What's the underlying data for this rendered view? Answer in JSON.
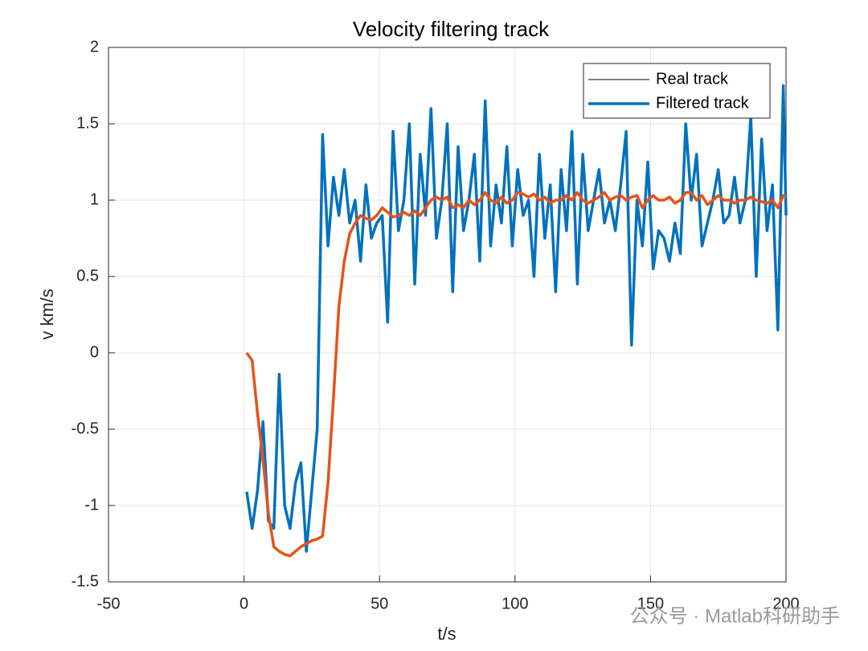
{
  "chart_data": {
    "type": "line",
    "title": "Velocity filtering track",
    "xlabel": "t/s",
    "ylabel": "v km/s",
    "xlim": [
      -50,
      200
    ],
    "xticks": [
      -50,
      0,
      50,
      100,
      150,
      200
    ],
    "ylim": [
      -1.5,
      2
    ],
    "yticks": [
      -1.5,
      -1,
      -0.5,
      0,
      0.5,
      1,
      1.5,
      2
    ],
    "grid": true,
    "legend_position": "upper right",
    "legend": [
      {
        "name": "Real track",
        "color": "#000000"
      },
      {
        "name": "Filtered track",
        "color": "#0072bd"
      }
    ],
    "x": [
      1,
      3,
      5,
      7,
      9,
      11,
      13,
      15,
      17,
      19,
      21,
      23,
      25,
      27,
      29,
      31,
      33,
      35,
      37,
      39,
      41,
      43,
      45,
      47,
      49,
      51,
      53,
      55,
      57,
      59,
      61,
      63,
      65,
      67,
      69,
      71,
      73,
      75,
      77,
      79,
      81,
      83,
      85,
      87,
      89,
      91,
      93,
      95,
      97,
      99,
      101,
      103,
      105,
      107,
      109,
      111,
      113,
      115,
      117,
      119,
      121,
      123,
      125,
      127,
      129,
      131,
      133,
      135,
      137,
      139,
      141,
      143,
      145,
      147,
      149,
      151,
      153,
      155,
      157,
      159,
      161,
      163,
      165,
      167,
      169,
      171,
      173,
      175,
      177,
      179,
      181,
      183,
      185,
      187,
      189,
      191,
      193,
      195,
      197,
      199,
      200
    ],
    "series": [
      {
        "color": "#0072bd",
        "values": [
          -0.91,
          -1.15,
          -0.9,
          -0.45,
          -1.1,
          -1.15,
          -0.14,
          -1.0,
          -1.15,
          -0.85,
          -0.72,
          -1.3,
          -0.9,
          -0.5,
          1.43,
          0.7,
          1.15,
          0.9,
          1.2,
          0.85,
          1.0,
          0.6,
          1.1,
          0.75,
          0.85,
          0.9,
          0.2,
          1.45,
          0.8,
          1.0,
          1.5,
          0.45,
          1.3,
          0.9,
          1.6,
          0.75,
          1.0,
          1.5,
          0.4,
          1.35,
          0.8,
          1.0,
          1.3,
          0.6,
          1.65,
          0.7,
          1.1,
          0.85,
          1.35,
          0.7,
          1.2,
          0.9,
          1.0,
          0.5,
          1.3,
          0.75,
          1.1,
          0.4,
          1.2,
          0.8,
          1.45,
          0.45,
          1.3,
          0.8,
          1.0,
          1.2,
          0.85,
          1.0,
          0.8,
          1.1,
          1.45,
          0.05,
          1.0,
          0.7,
          1.25,
          0.55,
          0.8,
          0.75,
          0.6,
          0.85,
          0.65,
          1.5,
          1.0,
          1.3,
          0.7,
          0.85,
          1.0,
          1.2,
          0.85,
          0.9,
          1.15,
          0.85,
          1.0,
          1.55,
          0.5,
          1.4,
          0.8,
          1.1,
          0.15,
          1.75,
          0.9
        ]
      },
      {
        "color": "#e65319",
        "values": [
          0,
          -0.05,
          -0.4,
          -0.7,
          -1.05,
          -1.27,
          -1.3,
          -1.32,
          -1.33,
          -1.3,
          -1.27,
          -1.25,
          -1.23,
          -1.22,
          -1.2,
          -0.85,
          -0.3,
          0.3,
          0.6,
          0.78,
          0.85,
          0.9,
          0.88,
          0.87,
          0.9,
          0.95,
          0.92,
          0.89,
          0.9,
          0.92,
          0.9,
          0.93,
          0.9,
          0.95,
          1.0,
          1.02,
          1.0,
          1.02,
          0.95,
          0.97,
          0.95,
          1.0,
          0.97,
          1.0,
          1.05,
          1.0,
          0.98,
          1.02,
          0.98,
          1.0,
          1.05,
          1.04,
          1.02,
          1.04,
          1.0,
          1.02,
          0.98,
          1.0,
          1.0,
          1.03,
          1.0,
          1.05,
          1.0,
          0.98,
          1.0,
          1.02,
          1.05,
          1.0,
          1.02,
          1.03,
          1.0,
          1.02,
          1.03,
          0.95,
          1.0,
          1.03,
          1.0,
          1.0,
          1.02,
          0.98,
          1.0,
          1.05,
          1.05,
          1.0,
          1.03,
          0.97,
          1.0,
          1.03,
          1.0,
          1.0,
          0.98,
          1.0,
          1.0,
          1.02,
          1.0,
          0.99,
          0.98,
          1.0,
          0.95,
          1.03,
          1.02
        ]
      }
    ]
  },
  "watermark": "公众号 · Matlab科研助手"
}
